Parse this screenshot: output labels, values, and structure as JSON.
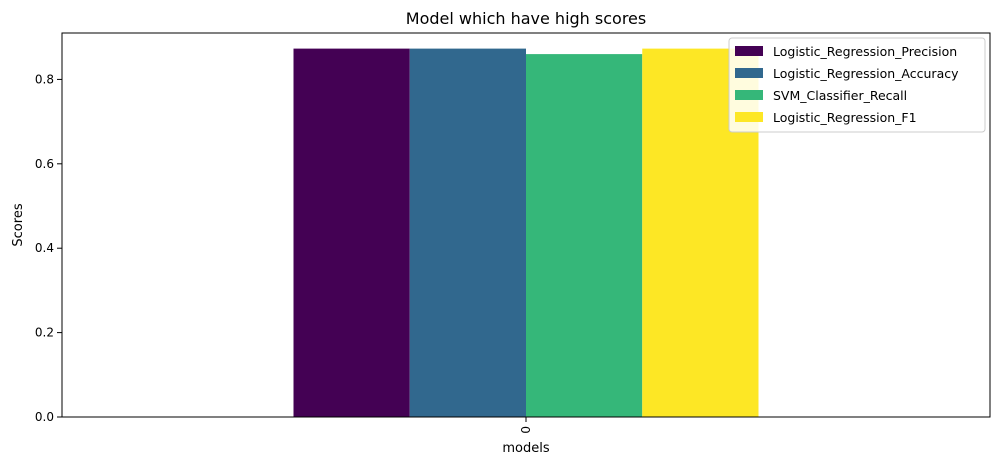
{
  "chart_data": {
    "type": "bar",
    "title": "Model which have high scores",
    "xlabel": "models",
    "ylabel": "Scores",
    "categories": [
      "0"
    ],
    "ylim": [
      0,
      0.91
    ],
    "yticks": [
      0.0,
      0.2,
      0.4,
      0.6,
      0.8
    ],
    "ytick_labels": [
      "0.0",
      "0.2",
      "0.4",
      "0.6",
      "0.8"
    ],
    "legend_position": "top-right",
    "grid": false,
    "series": [
      {
        "name": "Logistic_Regression_Precision",
        "values": [
          0.873
        ],
        "color": "#440154"
      },
      {
        "name": "Logistic_Regression_Accuracy",
        "values": [
          0.873
        ],
        "color": "#31688e"
      },
      {
        "name": "SVM_Classifier_Recall",
        "values": [
          0.86
        ],
        "color": "#35b779"
      },
      {
        "name": "Logistic_Regression_F1",
        "values": [
          0.873
        ],
        "color": "#fde725"
      }
    ]
  }
}
